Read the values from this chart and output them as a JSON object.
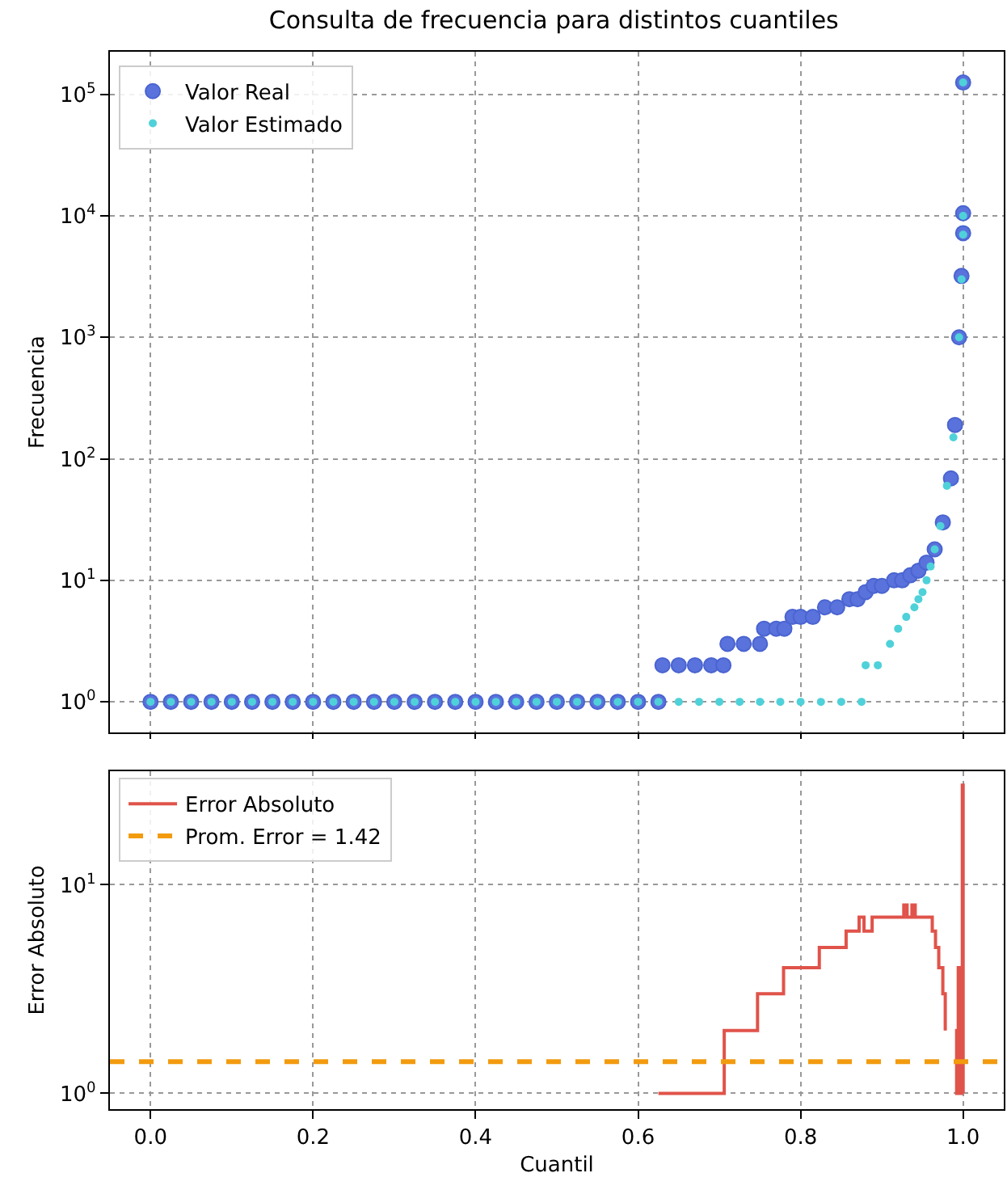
{
  "chart_data": [
    {
      "type": "scatter",
      "title": "Consulta de frecuencia para distintos cuantiles",
      "ylabel": "Frecuencia",
      "log": "y",
      "grid": true,
      "legend": "top left",
      "marker": "circle",
      "tick_labels": "y",
      "xlim": [
        -0.05,
        1.05
      ],
      "xticks": [
        {
          "value": 0,
          "label": null
        },
        {
          "value": 0.2,
          "label": null
        },
        {
          "value": 0.4,
          "label": null
        },
        {
          "value": 0.6,
          "label": null
        },
        {
          "value": 0.8,
          "label": null
        },
        {
          "value": 1,
          "label": null
        }
      ],
      "ylim": [
        0.56,
        224000
      ],
      "yticks": [
        {
          "value": 1,
          "label": "10$^{0}$"
        },
        {
          "value": 10,
          "label": "10$^{1}$"
        },
        {
          "value": 100,
          "label": "10$^{2}$"
        },
        {
          "value": 1000,
          "label": "10$^{3}$"
        },
        {
          "value": 10000,
          "label": "10$^{4}$"
        },
        {
          "value": 100000,
          "label": "10$^{5}$"
        }
      ],
      "series": [
        {
          "name": "Valor Real",
          "color": "#5a72dc",
          "x": [
            0,
            0.025,
            0.05,
            0.075,
            0.1,
            0.125,
            0.15,
            0.175,
            0.2,
            0.225,
            0.25,
            0.275,
            0.3,
            0.325,
            0.35,
            0.375,
            0.4,
            0.425,
            0.45,
            0.475,
            0.5,
            0.525,
            0.55,
            0.575,
            0.6,
            0.625,
            0.63,
            0.65,
            0.67,
            0.69,
            0.705,
            0.71,
            0.73,
            0.75,
            0.755,
            0.77,
            0.78,
            0.79,
            0.8,
            0.815,
            0.83,
            0.845,
            0.86,
            0.87,
            0.88,
            0.89,
            0.9,
            0.915,
            0.925,
            0.935,
            0.945,
            0.955,
            0.965,
            0.975,
            0.985,
            0.99,
            0.995,
            0.998,
            1,
            1,
            1
          ],
          "values": [
            1,
            1,
            1,
            1,
            1,
            1,
            1,
            1,
            1,
            1,
            1,
            1,
            1,
            1,
            1,
            1,
            1,
            1,
            1,
            1,
            1,
            1,
            1,
            1,
            1,
            1,
            2,
            2,
            2,
            2,
            2,
            3,
            3,
            3,
            4,
            4,
            4,
            5,
            5,
            5,
            6,
            6,
            7,
            7,
            8,
            9,
            9,
            10,
            10,
            11,
            12,
            14,
            18,
            30,
            69,
            190,
            1000,
            3200,
            7200,
            10500,
            125000
          ]
        },
        {
          "name": "Valor Estimado",
          "color": "#4fd1d9",
          "x": [
            0,
            0.025,
            0.05,
            0.075,
            0.1,
            0.125,
            0.15,
            0.175,
            0.2,
            0.225,
            0.25,
            0.275,
            0.3,
            0.325,
            0.35,
            0.375,
            0.4,
            0.425,
            0.45,
            0.475,
            0.5,
            0.525,
            0.55,
            0.575,
            0.6,
            0.625,
            0.65,
            0.675,
            0.7,
            0.725,
            0.75,
            0.775,
            0.8,
            0.825,
            0.85,
            0.875,
            0.88,
            0.895,
            0.91,
            0.92,
            0.93,
            0.94,
            0.945,
            0.95,
            0.955,
            0.96,
            0.965,
            0.972,
            0.98,
            0.988,
            0.995,
            0.998,
            1,
            1,
            1
          ],
          "values": [
            1,
            1,
            1,
            1,
            1,
            1,
            1,
            1,
            1,
            1,
            1,
            1,
            1,
            1,
            1,
            1,
            1,
            1,
            1,
            1,
            1,
            1,
            1,
            1,
            1,
            1,
            1,
            1,
            1,
            1,
            1,
            1,
            1,
            1,
            1,
            1,
            2,
            2,
            3,
            4,
            5,
            6,
            7,
            8,
            10,
            13,
            18,
            28,
            60,
            150,
            1000,
            3000,
            7000,
            10000,
            125000
          ]
        }
      ]
    },
    {
      "type": "step",
      "xlabel": "Cuantil",
      "ylabel": "Error Absoluto",
      "log": "y",
      "grid": true,
      "legend": "top left",
      "xlim": [
        -0.05,
        1.05
      ],
      "xticks": [
        {
          "value": 0,
          "label": "0.0"
        },
        0.2,
        0.4,
        0.6,
        0.8,
        {
          "value": 1,
          "label": "1.0"
        }
      ],
      "ylim": [
        0.84,
        35
      ],
      "yticks": [
        {
          "value": 1,
          "label": "10$^{0}$"
        },
        {
          "value": 10,
          "label": "10$^{1}$"
        }
      ],
      "series": [
        {
          "name": "Error Absoluto",
          "color": "#e0534a",
          "x": [
            0.625,
            0.706,
            0.747,
            0.779,
            0.823,
            0.856,
            0.872,
            0.878,
            0.888,
            0.927,
            0.931,
            0.937,
            0.941,
            0.962,
            0.966,
            0.97,
            0.975,
            0.978,
            0.982,
            0.99,
            0.992,
            0.994,
            0.996,
            0.998,
            0.999,
            1
          ],
          "values": [
            1,
            2,
            3,
            4,
            5,
            6,
            7,
            6,
            7,
            8,
            7,
            8,
            7,
            6,
            5,
            4,
            3,
            2,
            null,
            2,
            1,
            4,
            1,
            4,
            30,
            1
          ]
        }
      ],
      "ref_lines": [
        {
          "axis": "y",
          "value": 1.42,
          "label": "Prom. Error = 1.42",
          "color": "#f29b0f",
          "line_style": "dashed"
        }
      ]
    }
  ]
}
